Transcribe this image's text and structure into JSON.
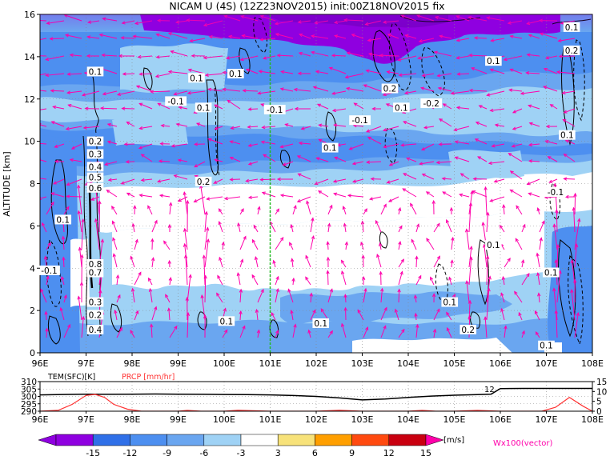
{
  "title": "NICAM U (4S)  (12Z23NOV2015)  init:00Z18NOV2015  fix",
  "chart_data": [
    {
      "type": "heatmap",
      "name": "main-section",
      "xlabel": "",
      "ylabel": "ALTITUDE [km]",
      "xlim": [
        96,
        108
      ],
      "ylim": [
        0,
        16
      ],
      "x_ticks": [
        "96E",
        "97E",
        "98E",
        "99E",
        "100E",
        "101E",
        "102E",
        "103E",
        "104E",
        "105E",
        "106E",
        "107E",
        "108E"
      ],
      "y_ticks": [
        "0",
        "2",
        "4",
        "6",
        "8",
        "10",
        "12",
        "14",
        "16"
      ],
      "marker_longitude": 101,
      "marker_color": "#22bb22",
      "grid": true,
      "contour_labels": [
        {
          "text": "0.1",
          "x": 107.55,
          "y": 15.4
        },
        {
          "text": "0.2",
          "x": 107.55,
          "y": 14.3
        },
        {
          "text": "0.1",
          "x": 105.85,
          "y": 13.8
        },
        {
          "text": "0.1",
          "x": 97.2,
          "y": 13.3
        },
        {
          "text": "0.1",
          "x": 99.4,
          "y": 13.0
        },
        {
          "text": "0.1",
          "x": 100.25,
          "y": 13.2
        },
        {
          "text": "0.2",
          "x": 103.6,
          "y": 12.5
        },
        {
          "text": "-0.1",
          "x": 98.95,
          "y": 11.9
        },
        {
          "text": "0.1",
          "x": 99.55,
          "y": 11.6
        },
        {
          "text": "-0.1",
          "x": 101.1,
          "y": 11.5
        },
        {
          "text": "0.1",
          "x": 103.85,
          "y": 11.6
        },
        {
          "text": "-0.2",
          "x": 104.5,
          "y": 11.8
        },
        {
          "text": "-0.1",
          "x": 102.95,
          "y": 11.0
        },
        {
          "text": "0.1",
          "x": 107.45,
          "y": 10.3
        },
        {
          "text": "0.2",
          "x": 97.2,
          "y": 10.0
        },
        {
          "text": "0.1",
          "x": 102.3,
          "y": 9.7
        },
        {
          "text": "0.3",
          "x": 97.2,
          "y": 9.4
        },
        {
          "text": "0.4",
          "x": 97.2,
          "y": 8.8
        },
        {
          "text": "0.5",
          "x": 97.2,
          "y": 8.3
        },
        {
          "text": "0.2",
          "x": 99.55,
          "y": 8.1
        },
        {
          "text": "0.6",
          "x": 97.2,
          "y": 7.8
        },
        {
          "text": "-0.1",
          "x": 107.2,
          "y": 7.6
        },
        {
          "text": "0.1",
          "x": 96.5,
          "y": 6.3
        },
        {
          "text": "0.1",
          "x": 105.85,
          "y": 5.1
        },
        {
          "text": "0.8",
          "x": 97.2,
          "y": 4.2
        },
        {
          "text": "-0.1",
          "x": 96.2,
          "y": 3.9
        },
        {
          "text": "0.7",
          "x": 97.2,
          "y": 3.8
        },
        {
          "text": "0.1",
          "x": 107.1,
          "y": 3.8
        },
        {
          "text": "0.1",
          "x": 104.9,
          "y": 2.4
        },
        {
          "text": "0.3",
          "x": 97.2,
          "y": 2.4
        },
        {
          "text": "0.2",
          "x": 97.2,
          "y": 1.8
        },
        {
          "text": "0.1",
          "x": 100.05,
          "y": 1.5
        },
        {
          "text": "0.1",
          "x": 102.1,
          "y": 1.4
        },
        {
          "text": "0.4",
          "x": 97.2,
          "y": 1.1
        },
        {
          "text": "0.2",
          "x": 105.3,
          "y": 1.1
        },
        {
          "text": "0.1",
          "x": 107.0,
          "y": 0.35
        }
      ]
    },
    {
      "type": "line",
      "name": "surface-panel",
      "legend": [
        {
          "label": "TEM(SFC)[K]",
          "color": "#000000"
        },
        {
          "label": "PRCP [mm/hr]",
          "color": "#ff3333"
        }
      ],
      "x_ticks": [
        "96E",
        "97E",
        "98E",
        "99E",
        "100E",
        "101E",
        "102E",
        "103E",
        "104E",
        "105E",
        "106E",
        "107E",
        "108E"
      ],
      "left_y_ticks": [
        "310",
        "305",
        "300",
        "295",
        "290"
      ],
      "right_y_ticks": [
        "15",
        "10",
        "5",
        "0"
      ],
      "left_ylim": [
        290,
        310
      ],
      "right_ylim": [
        0,
        15
      ],
      "series": [
        {
          "name": "TEM(SFC)[K]",
          "color": "#000000",
          "x": [
            96,
            96.5,
            97,
            97.5,
            98,
            98.5,
            99,
            99.5,
            100,
            100.5,
            101,
            101.5,
            102,
            102.5,
            103,
            103.5,
            104,
            104.5,
            105,
            105.5,
            105.8,
            106,
            106.5,
            107,
            107.5,
            108
          ],
          "y": [
            301,
            301.3,
            301.5,
            301.4,
            301.5,
            301.6,
            301.5,
            301.4,
            301.3,
            301.2,
            301,
            300.6,
            300,
            299,
            297.6,
            298.2,
            299.3,
            300.2,
            300.8,
            301.2,
            301.5,
            305.3,
            305.4,
            305.4,
            305.4,
            305.4
          ]
        },
        {
          "name": "PRCP [mm/hr]",
          "color": "#ff3333",
          "x": [
            96,
            96.4,
            96.7,
            97,
            97.2,
            97.4,
            97.6,
            97.9,
            98.2,
            99,
            99.2,
            99.5,
            100,
            100.3,
            101,
            102,
            102.5,
            103,
            104,
            104.3,
            104.6,
            105,
            105.5,
            106,
            106.9,
            107.2,
            107.5,
            107.8,
            108
          ],
          "y": [
            0,
            0.5,
            3.5,
            8,
            8.5,
            7,
            3.5,
            1,
            0,
            0,
            0.4,
            0,
            0,
            0.5,
            0,
            0,
            0.5,
            0,
            0,
            0.4,
            0,
            0,
            0.4,
            0,
            0,
            2,
            7,
            2.5,
            0
          ]
        }
      ],
      "annotation": "12"
    }
  ],
  "colorbar": {
    "ticks": [
      "-15",
      "-12",
      "-9",
      "-6",
      "-3",
      "3",
      "6",
      "9",
      "12",
      "15"
    ],
    "unit": "[m/s]",
    "colors": [
      "#8f00e0",
      "#3070e8",
      "#4d8ff0",
      "#6aa6f0",
      "#9fd2f5",
      "#ffffff",
      "#f7e27a",
      "#ff9f00",
      "#ff4a10",
      "#c90010"
    ],
    "vector_label": "Wx100(vector)",
    "vector_color": "#ff00aa"
  }
}
